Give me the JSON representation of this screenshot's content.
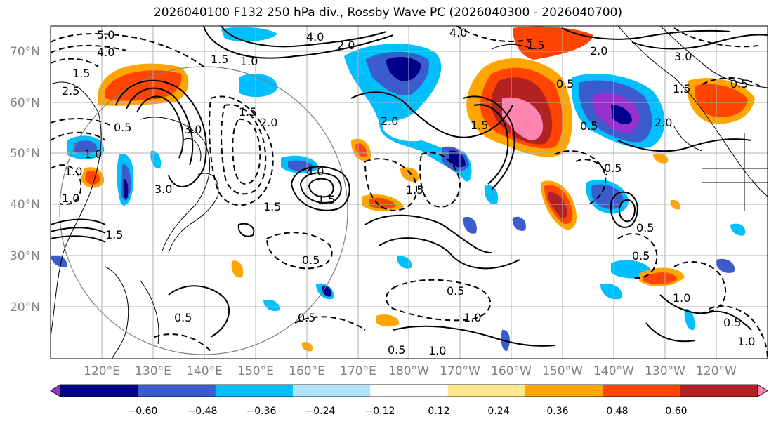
{
  "title": "2026040100 F132 250 hPa div., Rossby Wave PC (2026040300 - 2026040700)",
  "lat_labels": [
    "70°N",
    "60°N",
    "50°N",
    "40°N",
    "30°N",
    "20°N"
  ],
  "lon_labels": [
    "120°E",
    "130°E",
    "140°E",
    "150°E",
    "160°E",
    "170°E",
    "180°W",
    "170°W",
    "160°W",
    "150°W",
    "140°W",
    "130°W",
    "120°W"
  ],
  "contour_labels": [
    "5.0",
    "4.0",
    "2.5",
    "1.5",
    "1.0",
    "0.5",
    "1.0",
    "2.0",
    "4.0",
    "3.0",
    "2.0",
    "1.5",
    "3.0",
    "1.5",
    "0.5",
    "1.5",
    "2.0",
    "4.0",
    "1.5",
    "1.5",
    "0.5",
    "0.5",
    "0.5",
    "1.0",
    "0.5",
    "1.5",
    "0.5",
    "0.5",
    "2.0",
    "1.5",
    "1.0",
    "2.0",
    "1.0",
    "0.5",
    "0.5",
    "1.0",
    "0.5",
    "1.0",
    "1.5",
    "4.0",
    "3.0",
    "1.5",
    "0.5",
    "0.5",
    "1.0"
  ],
  "colorbar": {
    "ticks": [
      "−0.60",
      "−0.48",
      "−0.36",
      "−0.24",
      "−0.12",
      "0.12",
      "0.24",
      "0.36",
      "0.48",
      "0.60"
    ],
    "colors": [
      "#9932cc",
      "#00008b",
      "#3a5ccc",
      "#00bfff",
      "#aee4ff",
      "#ffffff",
      "#ffe88a",
      "#ffa500",
      "#ff4500",
      "#b22222",
      "#ff85b0"
    ]
  },
  "legend": {
    "shading": "Rossby Wave PC",
    "contours": "250 hPa div."
  }
}
